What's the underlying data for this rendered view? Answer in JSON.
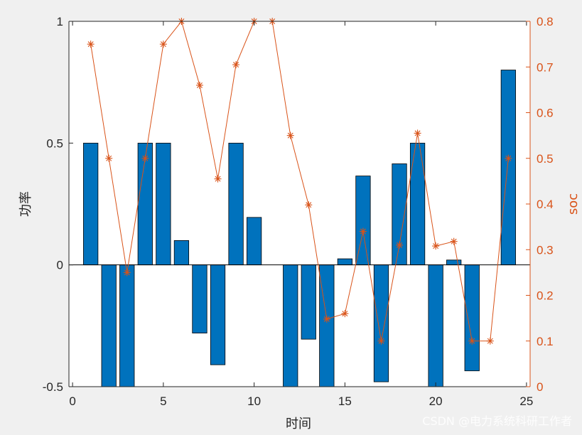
{
  "chart_data": {
    "type": "bar",
    "xlabel": "时间",
    "ylabel": "功率",
    "y2label": "soc",
    "xlim": [
      -0.2,
      25.2
    ],
    "ylim": [
      -0.5,
      1
    ],
    "y2lim": [
      0,
      0.8
    ],
    "xticks": [
      "0",
      "5",
      "10",
      "15",
      "20",
      "25"
    ],
    "yticks": [
      "-0.5",
      "0",
      "0.5",
      "1"
    ],
    "y2ticks": [
      "0",
      "0.1",
      "0.2",
      "0.3",
      "0.4",
      "0.5",
      "0.6",
      "0.7",
      "0.8"
    ],
    "grid": false,
    "bar_series": {
      "color": "#0072BD",
      "x": [
        1,
        2,
        3,
        4,
        5,
        6,
        7,
        8,
        9,
        10,
        11,
        12,
        13,
        14,
        15,
        16,
        17,
        18,
        19,
        20,
        21,
        22,
        23,
        24
      ],
      "values": [
        0.5,
        -0.5,
        -0.5,
        0.5,
        0.5,
        0.1,
        -0.28,
        -0.41,
        0.5,
        0.195,
        0,
        -0.5,
        -0.305,
        -0.5,
        0.025,
        0.365,
        -0.48,
        0.415,
        0.5,
        -0.5,
        0.02,
        -0.435,
        0,
        0.8
      ]
    },
    "line_series": {
      "color": "#D95319",
      "marker": "asterisk",
      "x": [
        1,
        2,
        3,
        4,
        5,
        6,
        7,
        8,
        9,
        10,
        11,
        12,
        13,
        14,
        15,
        16,
        17,
        18,
        19,
        20,
        21,
        22,
        23,
        24
      ],
      "values": [
        0.75,
        0.5,
        0.25,
        0.5,
        0.75,
        0.8,
        0.66,
        0.455,
        0.705,
        0.8,
        0.8,
        0.55,
        0.398,
        0.148,
        0.16,
        0.34,
        0.1,
        0.31,
        0.555,
        0.308,
        0.318,
        0.1,
        0.1,
        0.5
      ]
    }
  },
  "watermark": "CSDN @电力系统科研工作者",
  "colors": {
    "background": "#f0f0f0",
    "plot_area": "#ffffff",
    "left_axis": "#262626",
    "right_axis": "#D95319"
  }
}
